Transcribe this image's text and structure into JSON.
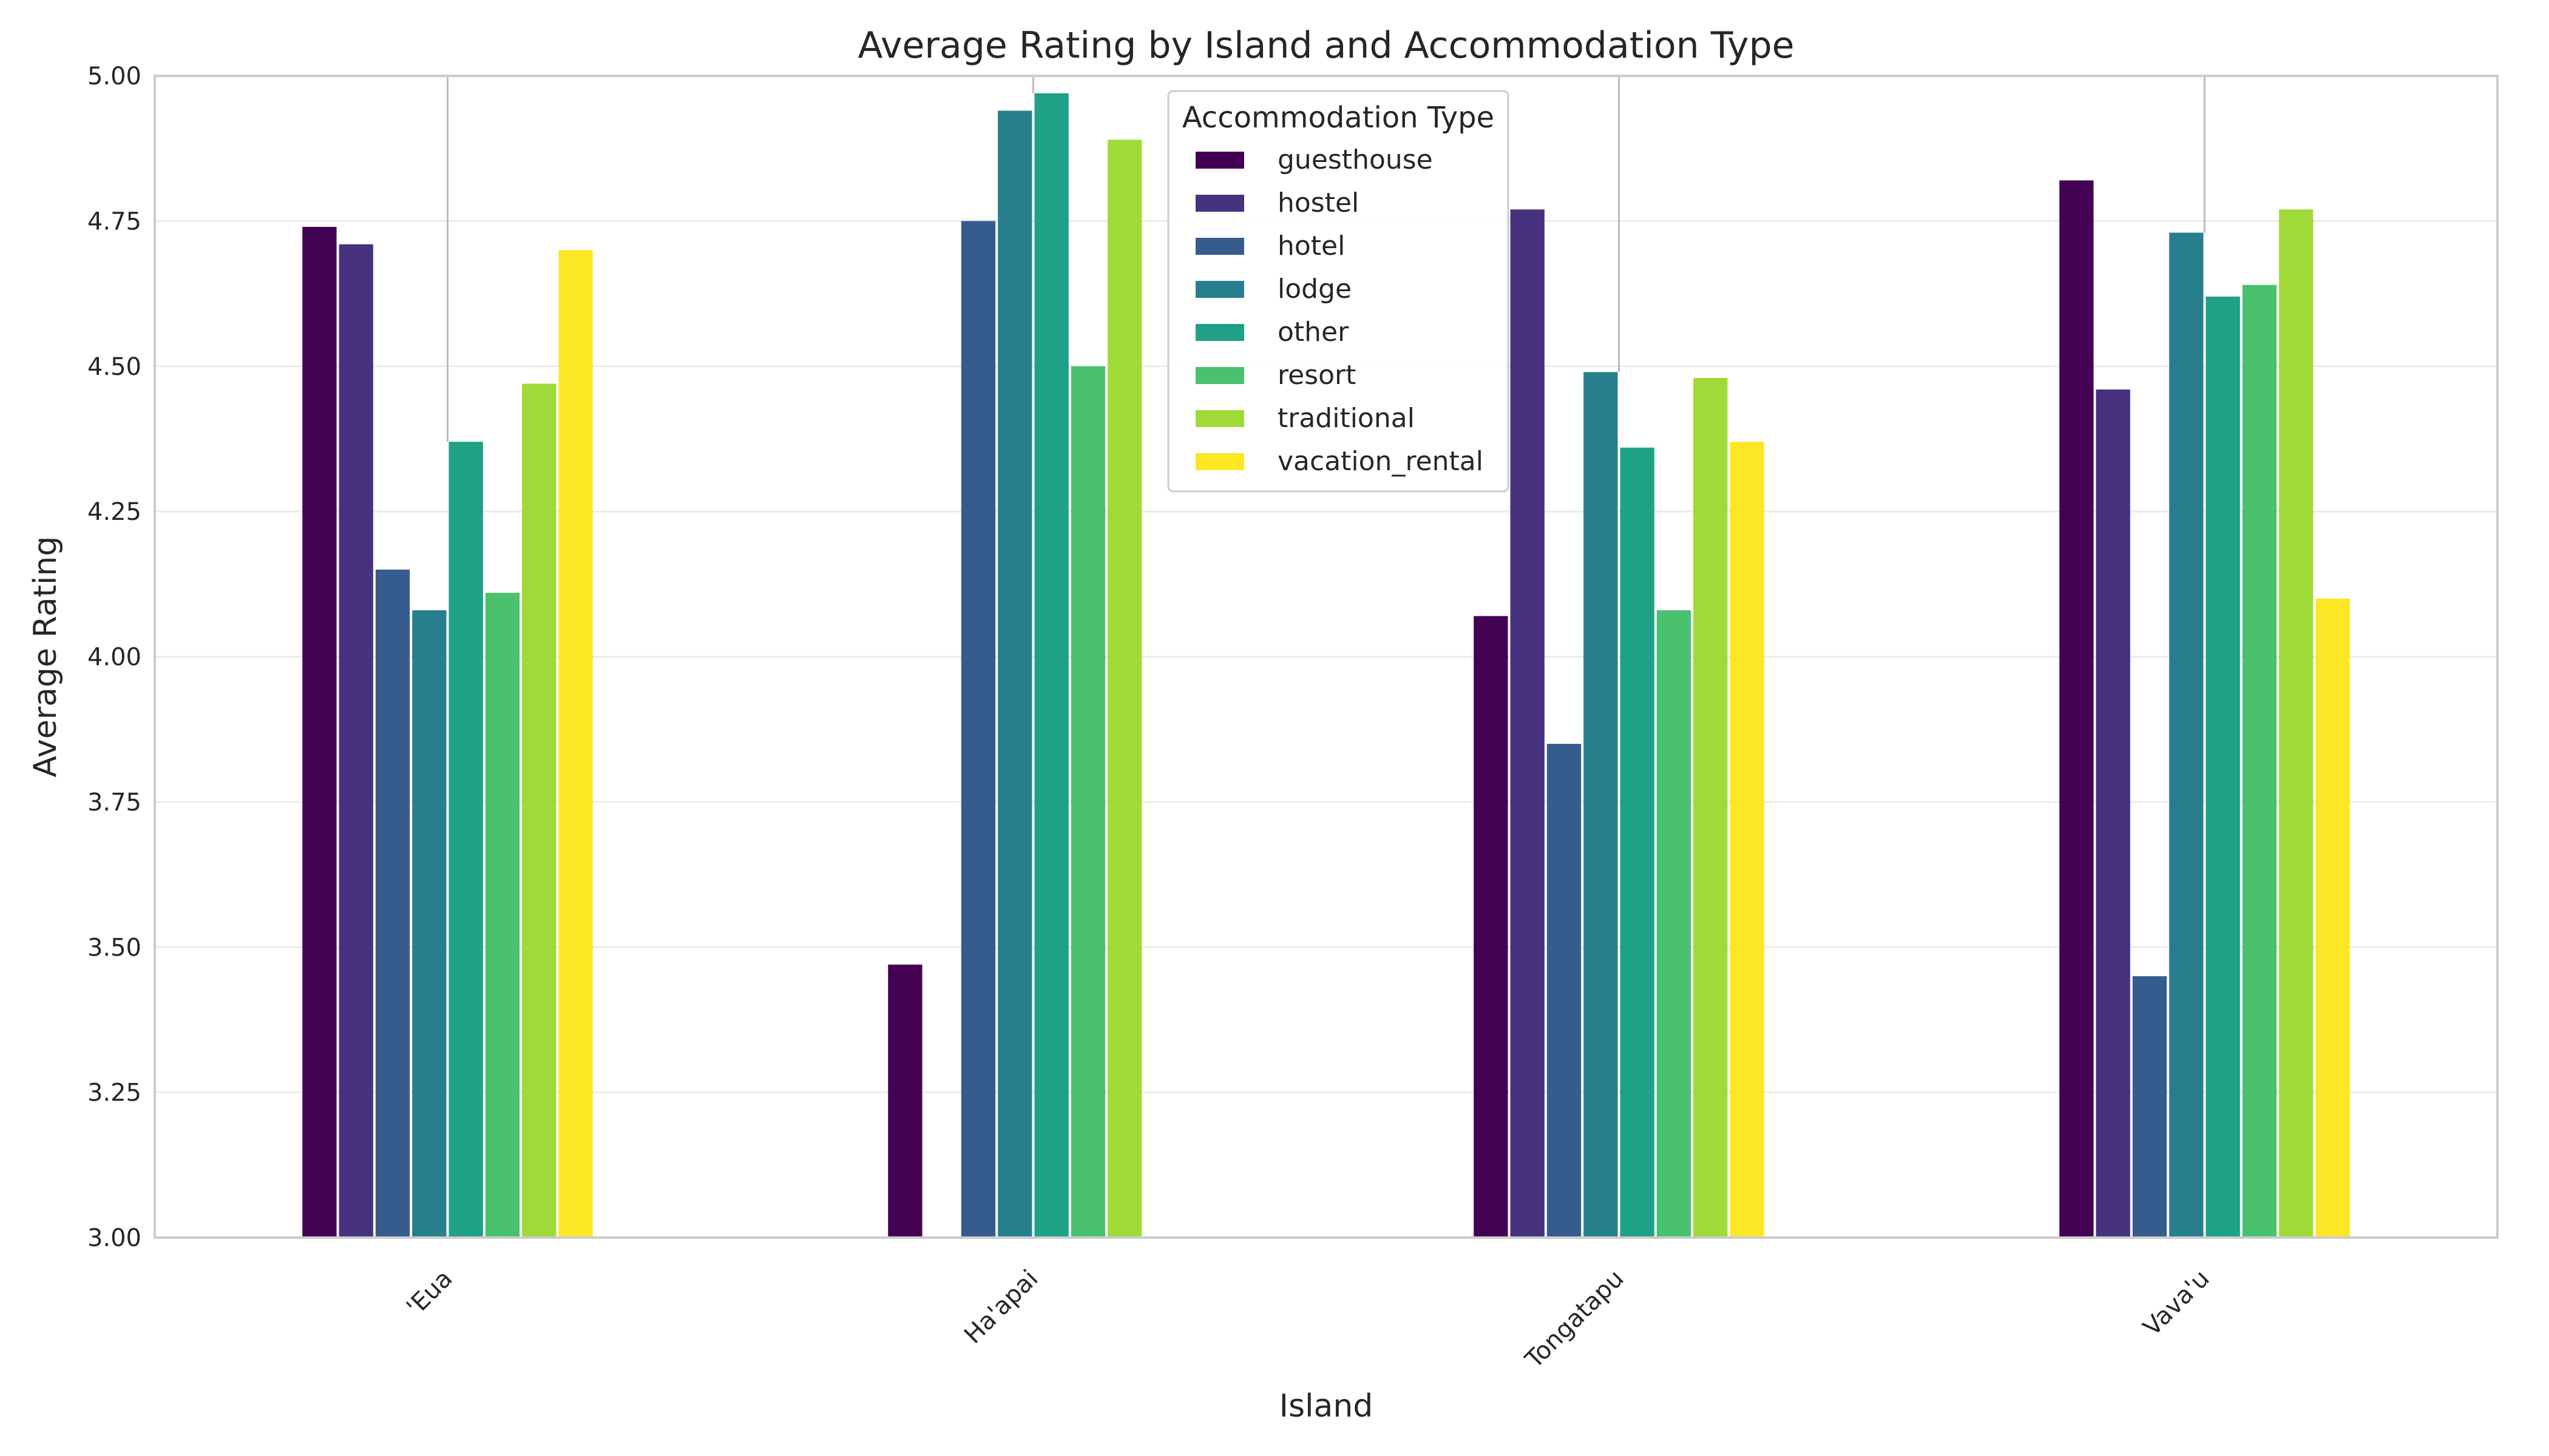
{
  "chart_data": {
    "type": "bar",
    "title": "Average Rating by Island and Accommodation Type",
    "xlabel": "Island",
    "ylabel": "Average Rating",
    "categories": [
      "'Eua",
      "Ha'apai",
      "Tongatapu",
      "Vava'u"
    ],
    "ylim": [
      3.0,
      5.0
    ],
    "yticks": [
      "3.00",
      "3.25",
      "3.50",
      "3.75",
      "4.00",
      "4.25",
      "4.50",
      "4.75",
      "5.00"
    ],
    "grid": "y",
    "legend": {
      "title": "Accommodation Type",
      "position": "top-center"
    },
    "series": [
      {
        "name": "guesthouse",
        "color": "#440154",
        "values": [
          4.74,
          3.47,
          4.07,
          4.82
        ]
      },
      {
        "name": "hostel",
        "color": "#46327e",
        "values": [
          4.71,
          null,
          4.77,
          4.46
        ]
      },
      {
        "name": "hotel",
        "color": "#365c8d",
        "values": [
          4.15,
          4.75,
          3.85,
          3.45
        ]
      },
      {
        "name": "lodge",
        "color": "#277f8e",
        "values": [
          4.08,
          4.94,
          4.49,
          4.73
        ]
      },
      {
        "name": "other",
        "color": "#1fa187",
        "values": [
          4.37,
          4.97,
          4.36,
          4.62
        ]
      },
      {
        "name": "resort",
        "color": "#4ac16d",
        "values": [
          4.11,
          4.5,
          4.08,
          4.64
        ]
      },
      {
        "name": "traditional",
        "color": "#a0da39",
        "values": [
          4.47,
          4.89,
          4.48,
          4.77
        ]
      },
      {
        "name": "vacation_rental",
        "color": "#fde725",
        "values": [
          4.7,
          null,
          4.37,
          4.1
        ]
      }
    ]
  }
}
